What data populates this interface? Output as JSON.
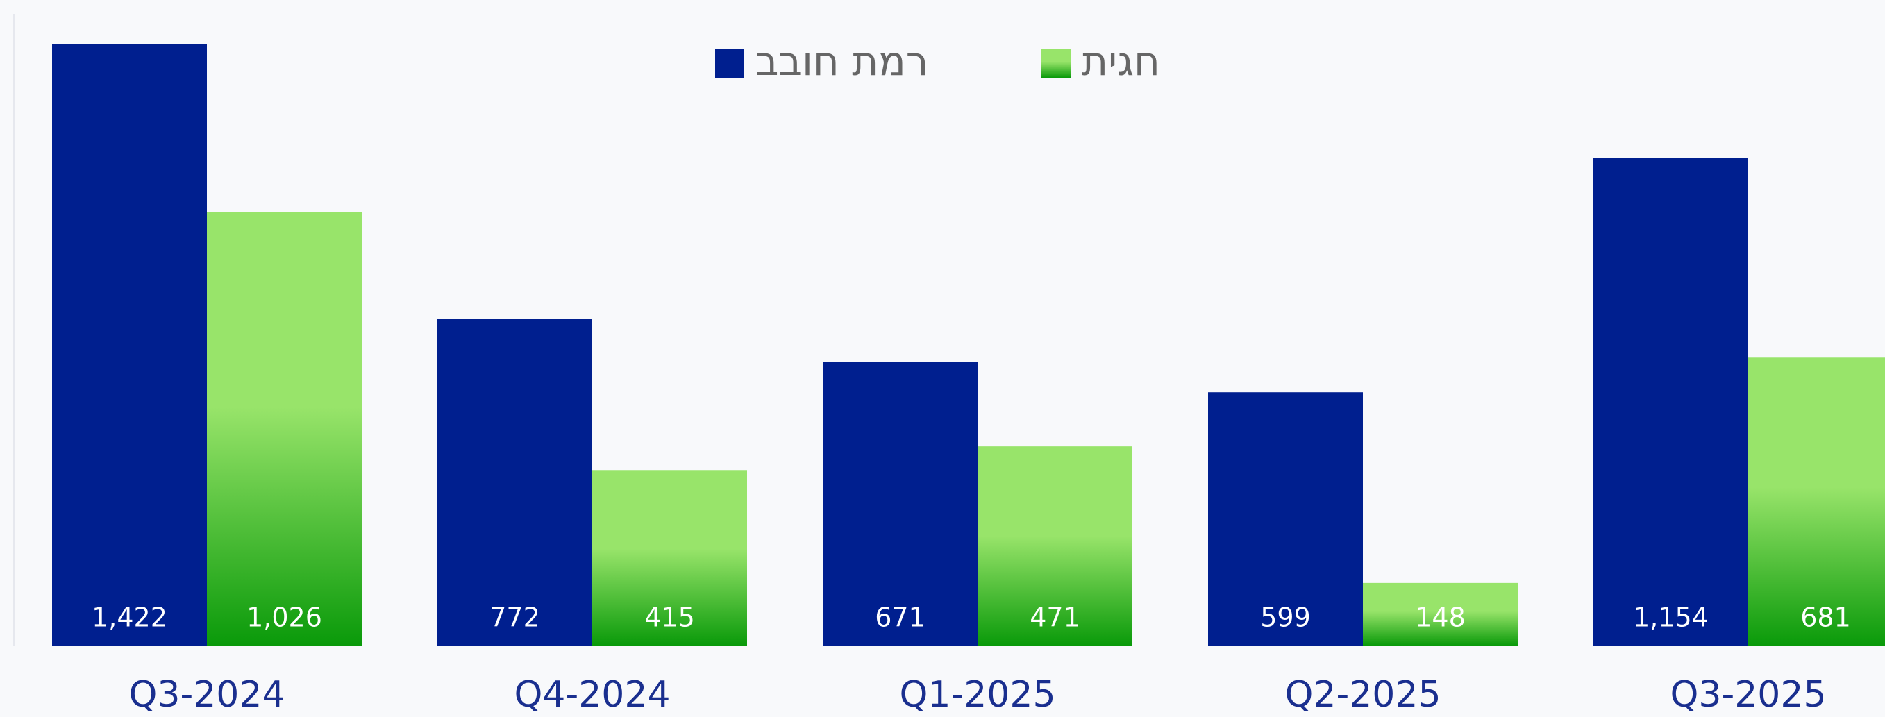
{
  "chart_data": {
    "type": "bar",
    "categories": [
      "Q3-2024",
      "Q4-2024",
      "Q1-2025",
      "Q2-2025",
      "Q3-2025"
    ],
    "series": [
      {
        "name": "רמת חובב",
        "color": "#001f8f",
        "values": [
          1422,
          772,
          671,
          599,
          1154
        ],
        "value_labels": [
          "1,422",
          "772",
          "671",
          "599",
          "1,154"
        ]
      },
      {
        "name": "חגית",
        "color": "#98e46a",
        "values": [
          1026,
          415,
          471,
          148,
          681
        ],
        "value_labels": [
          "1,026",
          "415",
          "471",
          "148",
          "681"
        ]
      }
    ],
    "legend": "top"
  }
}
